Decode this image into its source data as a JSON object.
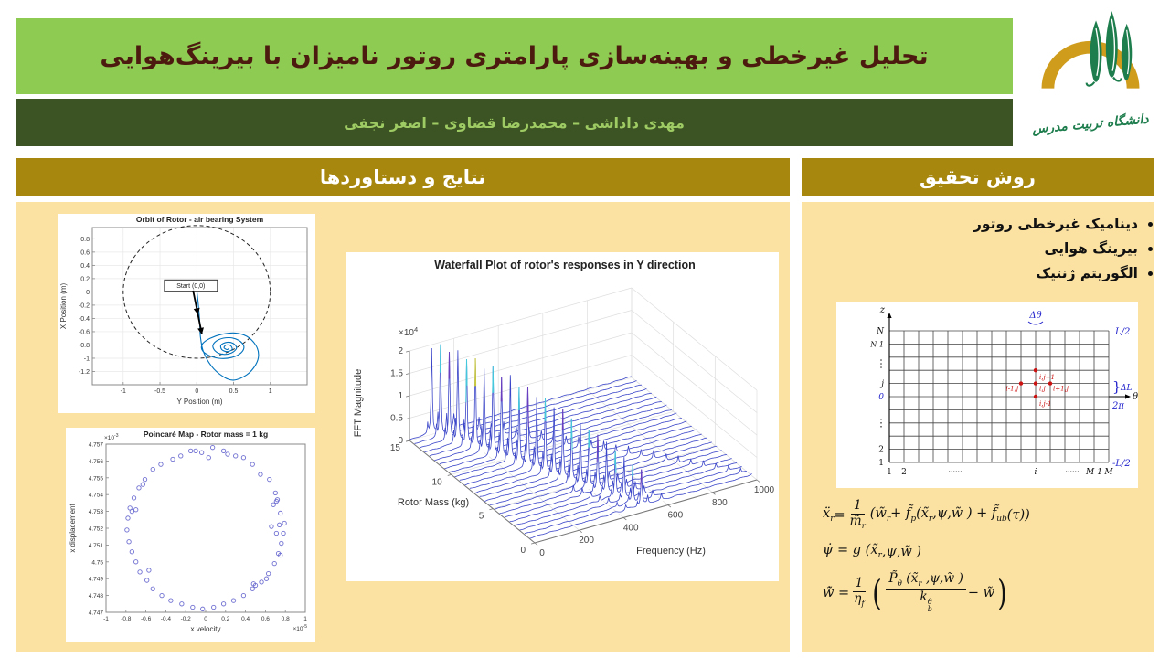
{
  "header": {
    "title": "تحلیل غیرخطی و بهینه‌سازی پارامتری روتور نامیزان با بیرینگ‌هوایی",
    "authors": "مهدی داداشی – محمدرضا قضاوی – اصغر نجفی",
    "logo_caption": "دانشگاه تربیت مدرس"
  },
  "colors": {
    "page_bg": "#ffffff",
    "title_band": "#8ecb52",
    "title_text": "#4d1a10",
    "authors_band": "#3c5423",
    "authors_text": "#9ecb63",
    "section_header_bg": "#a8870e",
    "section_header_text": "#ffffff",
    "panel_bg": "#fbe2a2",
    "logo_gold": "#cf9c1c",
    "logo_green": "#1e7d4d",
    "matlab_blue": "#0072bd",
    "scatter_marker": "#6f6fd2",
    "figure_blue": "#2323cc",
    "figure_red": "#cc1111"
  },
  "left_panel": {
    "title": "نتایج و دستاوردها"
  },
  "right_panel": {
    "title": "روش تحقیق",
    "bullets": [
      "دینامیک غیرخطی روتور",
      "بیرینگ هوایی",
      "الگوریتم ژنتیک"
    ],
    "grid_figure": {
      "z_label": "z",
      "theta_label": "θ",
      "delta_theta": "Δθ",
      "top_right": "L/2",
      "delta_l": "ΔL",
      "two_pi": "2π",
      "bottom_right": "-L/2",
      "left_labels": [
        "N",
        "N-1",
        "j",
        "0",
        "2",
        "1"
      ],
      "bottom_labels": [
        "1",
        "2",
        "i",
        "M-1",
        "M"
      ],
      "dots": "······",
      "stencil_labels": [
        "i,j+1",
        "i-1,j",
        "i,j",
        "i+1,j",
        "i,j-1"
      ]
    },
    "equations": [
      [
        {
          "x": "ẍ",
          "s": "r"
        },
        {
          "x": " = "
        },
        {
          "f": {
            "n": [
              {
                "x": "1"
              }
            ],
            "d": [
              {
                "x": "m̃",
                "s": "r"
              }
            ]
          }
        },
        {
          "x": "(w̃",
          "s": "r"
        },
        {
          "x": " + f̃",
          "s": "p"
        },
        {
          "x": " (x̃",
          "s": "r"
        },
        {
          "x": " ,ψ,w̃ ) + f̃",
          "s": "ub"
        },
        {
          "x": " (τ))"
        }
      ],
      [
        {
          "x": "ψ̇ = g (x̃",
          "s": "r"
        },
        {
          "x": " ,ψ,w̃ )"
        }
      ],
      [
        {
          "x": "w̃̇ = "
        },
        {
          "f": {
            "n": [
              {
                "x": "1"
              }
            ],
            "d": [
              {
                "x": "η",
                "s": "f"
              }
            ]
          }
        },
        {
          "big": "("
        },
        {
          "f": {
            "n": [
              {
                "x": "P̃",
                "s": "θ"
              },
              {
                "x": " (x̃",
                "s": "r"
              },
              {
                "x": " ,ψ,w̃ )"
              }
            ],
            "d": [
              {
                "x": "k",
                "s": "b",
                "p": "θ"
              }
            ]
          }
        },
        {
          "x": " − w̃"
        },
        {
          "big": ")"
        }
      ]
    ]
  },
  "chart_data": [
    {
      "type": "line",
      "title": "Orbit of Rotor - air bearing System",
      "xlabel": "Y Position (m)",
      "ylabel": "X Position (m)",
      "xlim": [
        -1.42,
        1.5
      ],
      "ylim": [
        -1.4,
        0.97
      ],
      "xticks": [
        -1,
        -0.5,
        0,
        0.5,
        1
      ],
      "yticks": [
        0.8,
        0.6,
        0.4,
        0.2,
        0,
        -0.2,
        -0.4,
        -0.6,
        -0.8,
        -1,
        -1.2
      ],
      "grid": true,
      "clearance_circle": {
        "cx": 0,
        "cy": 0,
        "r": 1,
        "style": "dashed"
      },
      "annotation": {
        "text": "Start (0,0)",
        "box": [
          -0.44,
          0.18,
          0.28,
          0.01
        ],
        "arrow_from": [
          -0.05,
          0.02
        ],
        "arrow_to": [
          0.07,
          -0.64
        ]
      },
      "line_color": "#0072bd",
      "trajectory": [
        [
          0,
          0.02
        ],
        [
          0.02,
          -0.18
        ],
        [
          0.04,
          -0.45
        ],
        [
          0.05,
          -0.68
        ],
        [
          0.09,
          -0.9
        ],
        [
          0.2,
          -1.12
        ],
        [
          0.35,
          -1.27
        ],
        [
          0.5,
          -1.33
        ],
        [
          0.68,
          -1.25
        ],
        [
          0.8,
          -1.1
        ],
        [
          0.84,
          -0.95
        ],
        [
          0.8,
          -0.8
        ],
        [
          0.68,
          -0.67
        ],
        [
          0.52,
          -0.62
        ],
        [
          0.34,
          -0.64
        ],
        [
          0.18,
          -0.7
        ],
        [
          0.08,
          -0.78
        ],
        [
          0.07,
          -0.87
        ],
        [
          0.15,
          -0.95
        ],
        [
          0.3,
          -1.0
        ],
        [
          0.47,
          -0.99
        ],
        [
          0.6,
          -0.92
        ],
        [
          0.64,
          -0.82
        ],
        [
          0.57,
          -0.73
        ],
        [
          0.44,
          -0.69
        ],
        [
          0.3,
          -0.72
        ],
        [
          0.22,
          -0.8
        ],
        [
          0.25,
          -0.89
        ],
        [
          0.35,
          -0.94
        ],
        [
          0.47,
          -0.92
        ],
        [
          0.54,
          -0.85
        ],
        [
          0.5,
          -0.78
        ],
        [
          0.41,
          -0.76
        ],
        [
          0.33,
          -0.8
        ],
        [
          0.34,
          -0.87
        ],
        [
          0.41,
          -0.9
        ],
        [
          0.48,
          -0.87
        ],
        [
          0.46,
          -0.81
        ],
        [
          0.4,
          -0.8
        ],
        [
          0.37,
          -0.84
        ],
        [
          0.41,
          -0.87
        ],
        [
          0.44,
          -0.85
        ]
      ]
    },
    {
      "type": "waterfall3d",
      "title": "Waterfall Plot of rotor's responses in Y direction",
      "xlabel": "Frequency (Hz)",
      "ylabel": "Rotor Mass (kg)",
      "zlabel": "FFT Magnitude",
      "z_scale_label": "×10",
      "z_scale_exp": "4",
      "xticks": [
        0,
        200,
        400,
        600,
        800,
        1000
      ],
      "yticks": [
        0,
        5,
        10,
        15
      ],
      "zticks": [
        0,
        0.5,
        1,
        1.5,
        2
      ],
      "xlim": [
        0,
        1000
      ],
      "ylim": [
        0,
        15
      ],
      "zlim": [
        0,
        2
      ],
      "trace_color": "#3a45c8",
      "spike_accents": [
        "#3a45c8",
        "#46c8dc",
        "#6a3fbf",
        "#3a45c8",
        "#46c8dc",
        "#caca3a",
        "#3a45c8",
        "#46c8dc",
        "#6a3fbf",
        "#3a45c8",
        "#46c8dc",
        "#6a3fbf",
        "#3a45c8",
        "#46c8dc",
        "#3a45c8",
        "#6a3fbf",
        "#46c8dc",
        "#3a45c8",
        "#46c8dc",
        "#6a3fbf",
        "#3a45c8",
        "#46c8dc",
        "#3a45c8",
        "#46c8dc",
        "#6a3fbf"
      ],
      "series": [
        {
          "mass": 15.0,
          "freq": 100,
          "mag": 1.9,
          "h2": 0.3
        },
        {
          "mass": 14.4,
          "freq": 117,
          "mag": 2.05,
          "h2": 0.26
        },
        {
          "mass": 13.8,
          "freq": 134,
          "mag": 1.95,
          "h2": 0.32
        },
        {
          "mass": 13.2,
          "freq": 150,
          "mag": 2.05,
          "h2": 0.22
        },
        {
          "mass": 12.6,
          "freq": 167,
          "mag": 1.92,
          "h2": 0.3
        },
        {
          "mass": 12.0,
          "freq": 184,
          "mag": 2.02,
          "h2": 0.24
        },
        {
          "mass": 11.4,
          "freq": 201,
          "mag": 1.85,
          "h2": 0.28
        },
        {
          "mass": 10.8,
          "freq": 218,
          "mag": 1.98,
          "h2": 0.22
        },
        {
          "mass": 10.2,
          "freq": 234,
          "mag": 1.8,
          "h2": 0.26
        },
        {
          "mass": 9.6,
          "freq": 251,
          "mag": 1.9,
          "h2": 0.2
        },
        {
          "mass": 9.0,
          "freq": 268,
          "mag": 1.72,
          "h2": 0.24
        },
        {
          "mass": 8.4,
          "freq": 285,
          "mag": 1.78,
          "h2": 0.2
        },
        {
          "mass": 7.8,
          "freq": 302,
          "mag": 1.62,
          "h2": 0.22
        },
        {
          "mass": 7.2,
          "freq": 318,
          "mag": 1.66,
          "h2": 0.18
        },
        {
          "mass": 6.6,
          "freq": 335,
          "mag": 1.52,
          "h2": 0.2
        },
        {
          "mass": 6.0,
          "freq": 352,
          "mag": 1.56,
          "h2": 0.16
        },
        {
          "mass": 5.4,
          "freq": 369,
          "mag": 1.42,
          "h2": 0.18
        },
        {
          "mass": 4.8,
          "freq": 386,
          "mag": 1.36,
          "h2": 0.15
        },
        {
          "mass": 4.2,
          "freq": 402,
          "mag": 1.28,
          "h2": 0.16
        },
        {
          "mass": 3.6,
          "freq": 419,
          "mag": 1.22,
          "h2": 0.13
        },
        {
          "mass": 3.0,
          "freq": 436,
          "mag": 1.12,
          "h2": 0.14
        },
        {
          "mass": 2.4,
          "freq": 453,
          "mag": 1.02,
          "h2": 0.12
        },
        {
          "mass": 1.8,
          "freq": 470,
          "mag": 0.92,
          "h2": 0.12
        },
        {
          "mass": 1.2,
          "freq": 486,
          "mag": 0.84,
          "h2": 0.1
        },
        {
          "mass": 0.6,
          "freq": 503,
          "mag": 0.78,
          "h2": 0.1
        }
      ]
    },
    {
      "type": "scatter",
      "title": "Poincaré Map - Rotor mass = 1 kg",
      "xlabel": "x velocity",
      "ylabel": "x displacement",
      "x_scale_label": "×10",
      "x_scale_exp": "-5",
      "y_scale_label": "×10",
      "y_scale_exp": "-3",
      "xlim": [
        -1,
        1
      ],
      "ylim": [
        4.747,
        4.757
      ],
      "xticks": [
        -1,
        -0.8,
        -0.6,
        -0.4,
        -0.2,
        0,
        0.2,
        0.4,
        0.6,
        0.8,
        1
      ],
      "yticks": [
        4.757,
        4.756,
        4.755,
        4.754,
        4.753,
        4.752,
        4.751,
        4.75,
        4.749,
        4.748,
        4.747
      ],
      "marker_color": "#6f6fd2",
      "points": [
        [
          0.79,
          4.7523
        ],
        [
          0.75,
          4.7529
        ],
        [
          0.72,
          4.7537
        ],
        [
          0.7,
          4.7541
        ],
        [
          0.64,
          4.7549
        ],
        [
          0.55,
          4.7552
        ],
        [
          0.47,
          4.7558
        ],
        [
          0.38,
          4.7562
        ],
        [
          0.3,
          4.7563
        ],
        [
          0.18,
          4.7566
        ],
        [
          0.07,
          4.7568
        ],
        [
          -0.04,
          4.7565
        ],
        [
          -0.15,
          4.7566
        ],
        [
          -0.25,
          4.7563
        ],
        [
          -0.33,
          4.7561
        ],
        [
          -0.45,
          4.7558
        ],
        [
          -0.53,
          4.7555
        ],
        [
          -0.61,
          4.7549
        ],
        [
          -0.67,
          4.7544
        ],
        [
          -0.72,
          4.7538
        ],
        [
          -0.76,
          4.7532
        ],
        [
          -0.78,
          4.7526
        ],
        [
          -0.79,
          4.7519
        ],
        [
          -0.77,
          4.7512
        ],
        [
          -0.74,
          4.7506
        ],
        [
          -0.7,
          4.75
        ],
        [
          -0.66,
          4.7494
        ],
        [
          -0.59,
          4.7489
        ],
        [
          -0.53,
          4.7484
        ],
        [
          -0.44,
          4.748
        ],
        [
          -0.35,
          4.7477
        ],
        [
          -0.24,
          4.7475
        ],
        [
          -0.13,
          4.7473
        ],
        [
          -0.03,
          4.7472
        ],
        [
          0.08,
          4.7473
        ],
        [
          0.18,
          4.7475
        ],
        [
          0.28,
          4.7477
        ],
        [
          0.38,
          4.748
        ],
        [
          0.47,
          4.7484
        ],
        [
          0.56,
          4.7488
        ],
        [
          0.63,
          4.7493
        ],
        [
          0.69,
          4.7499
        ],
        [
          0.73,
          4.7505
        ],
        [
          0.76,
          4.7511
        ],
        [
          0.78,
          4.7517
        ],
        [
          0.71,
          4.7536
        ],
        [
          0.68,
          4.7534
        ],
        [
          0.74,
          4.7522
        ],
        [
          0.66,
          4.7521
        ],
        [
          0.71,
          4.7517
        ],
        [
          -0.74,
          4.753
        ],
        [
          -0.7,
          4.7531
        ],
        [
          -0.63,
          4.7546
        ],
        [
          0.5,
          4.7486
        ],
        [
          0.48,
          4.7487
        ],
        [
          -0.1,
          4.7566
        ],
        [
          0.22,
          4.7564
        ],
        [
          -0.57,
          4.7495
        ],
        [
          0.61,
          4.749
        ],
        [
          0.75,
          4.7504
        ],
        [
          0.03,
          4.7562
        ]
      ]
    }
  ]
}
